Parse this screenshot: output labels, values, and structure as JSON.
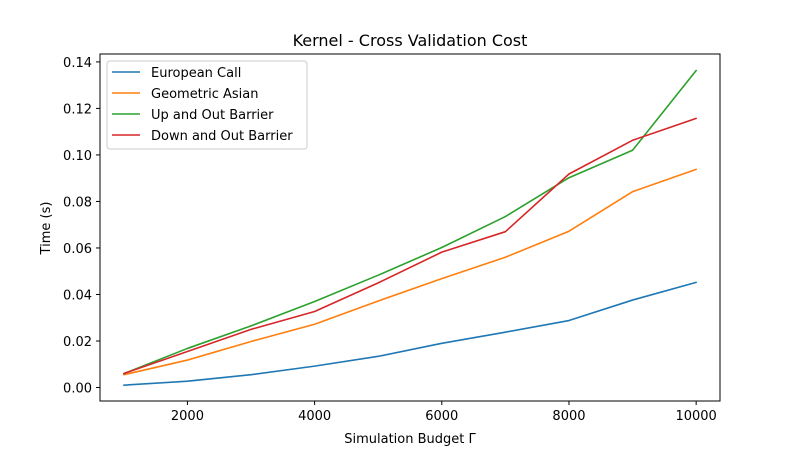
{
  "chart_data": {
    "type": "line",
    "title": "Kernel - Cross Validation Cost",
    "xlabel": "Simulation Budget Γ",
    "ylabel": "Time (s)",
    "x": [
      1000,
      2000,
      3000,
      4000,
      5000,
      6000,
      7000,
      8000,
      9000,
      10000
    ],
    "xlim": [
      625,
      10375
    ],
    "ylim": [
      -0.0058,
      0.1434
    ],
    "xticks": [
      2000,
      4000,
      6000,
      8000,
      10000
    ],
    "xtick_labels": [
      "2000",
      "4000",
      "6000",
      "8000",
      "10000"
    ],
    "yticks": [
      0.0,
      0.02,
      0.04,
      0.06,
      0.08,
      0.1,
      0.12,
      0.14
    ],
    "ytick_labels": [
      "0.00",
      "0.02",
      "0.04",
      "0.06",
      "0.08",
      "0.10",
      "0.12",
      "0.14"
    ],
    "grid": false,
    "legend_position": "top-left",
    "series": [
      {
        "name": "European Call",
        "color": "#1f77b4",
        "values": [
          0.001,
          0.0027,
          0.0055,
          0.0092,
          0.0134,
          0.019,
          0.0238,
          0.0288,
          0.0376,
          0.0452
        ]
      },
      {
        "name": "Geometric Asian",
        "color": "#ff7f0e",
        "values": [
          0.0055,
          0.0118,
          0.0198,
          0.0272,
          0.0372,
          0.0468,
          0.056,
          0.0672,
          0.0842,
          0.0938
        ]
      },
      {
        "name": "Up and Out Barrier",
        "color": "#2ca02c",
        "values": [
          0.006,
          0.0168,
          0.0265,
          0.037,
          0.0483,
          0.0602,
          0.0735,
          0.0902,
          0.102,
          0.1363
        ]
      },
      {
        "name": "Down and Out Barrier",
        "color": "#d62728",
        "values": [
          0.006,
          0.0155,
          0.025,
          0.0327,
          0.045,
          0.0582,
          0.067,
          0.0918,
          0.1063,
          0.1157
        ]
      }
    ]
  }
}
